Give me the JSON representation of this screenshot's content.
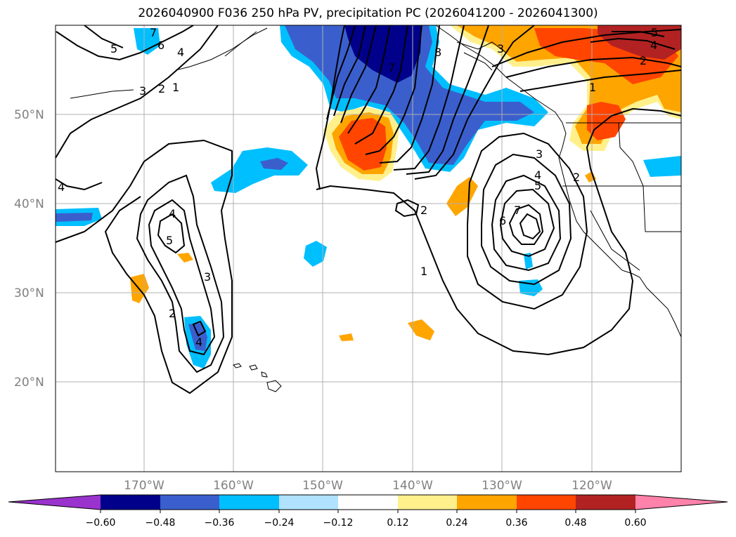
{
  "title": "2026040900 F036 250 hPa PV, precipitation PC (2026041200 - 2026041300)",
  "map": {
    "lat_labels": [
      "50°N",
      "40°N",
      "30°N",
      "20°N"
    ],
    "lon_labels": [
      "170°W",
      "160°W",
      "150°W",
      "140°W",
      "130°W",
      "120°W"
    ],
    "contour_labels": [
      "1",
      "2",
      "3",
      "4",
      "5",
      "6",
      "7",
      "8"
    ]
  },
  "colorbar": {
    "ticks": [
      "−0.60",
      "−0.48",
      "−0.36",
      "−0.24",
      "−0.12",
      "0.12",
      "0.24",
      "0.36",
      "0.48",
      "0.60"
    ],
    "colors": [
      "#9a32cd",
      "#00008b",
      "#3a5fcd",
      "#00bfff",
      "#b0e2ff",
      "#ffffff",
      "#fff08c",
      "#ffa500",
      "#ff4500",
      "#b22222",
      "#ff82ab"
    ]
  },
  "colors": {
    "land_outline": "#000000",
    "grid": "#b0b0b0"
  }
}
